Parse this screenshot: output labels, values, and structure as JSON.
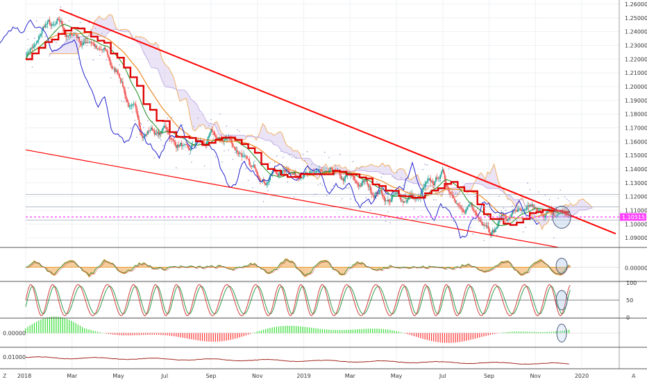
{
  "chart_data": {
    "type": "line",
    "instrument_hint": "EUR/USD",
    "price_axis": {
      "ticks": [
        "1.26000",
        "1.25000",
        "1.24000",
        "1.23000",
        "1.22000",
        "1.21000",
        "1.20000",
        "1.19000",
        "1.18000",
        "1.17000",
        "1.16000",
        "1.15000",
        "1.14000",
        "1.13000",
        "1.12000",
        "1.11000",
        "1.10000",
        "1.09000"
      ],
      "range": [
        1.084,
        1.263
      ],
      "last_price": "1.10515"
    },
    "time_axis": {
      "ticks": [
        "2018",
        "Mar",
        "May",
        "Jul",
        "Sep",
        "Nov",
        "2019",
        "Mar",
        "May",
        "Jul",
        "Sep",
        "Nov",
        "2020"
      ],
      "corner_left": "Z",
      "corner_right": "A"
    },
    "price_series": {
      "x": [
        "2018-01",
        "2018-02",
        "2018-03",
        "2018-04",
        "2018-05",
        "2018-06",
        "2018-07",
        "2018-08",
        "2018-09",
        "2018-10",
        "2018-11",
        "2018-12",
        "2019-01",
        "2019-02",
        "2019-03",
        "2019-04",
        "2019-05",
        "2019-06",
        "2019-07",
        "2019-08",
        "2019-09",
        "2019-10",
        "2019-11",
        "2019-12"
      ],
      "close": [
        1.222,
        1.245,
        1.235,
        1.232,
        1.208,
        1.168,
        1.168,
        1.152,
        1.16,
        1.158,
        1.134,
        1.14,
        1.14,
        1.133,
        1.128,
        1.124,
        1.118,
        1.12,
        1.133,
        1.11,
        1.1,
        1.11,
        1.105,
        1.105
      ]
    },
    "trendlines": [
      {
        "from": [
          "2018-02-15",
          1.256
        ],
        "to": [
          "2020-02-15",
          1.093
        ]
      },
      {
        "from": [
          "2018-01-01",
          1.154
        ],
        "to": [
          "2019-12-01",
          1.083
        ]
      }
    ],
    "horizontal_lines": [
      1.1215,
      1.1125,
      1.1029
    ],
    "indicators": [
      {
        "pane": "oscillator-1",
        "ticks": [
          "0.00000"
        ]
      },
      {
        "pane": "stochastic",
        "ticks": [
          "100",
          "50",
          "0"
        ]
      },
      {
        "pane": "histogram",
        "ticks": [
          "0.00000"
        ]
      },
      {
        "pane": "volatility",
        "ticks": [
          "0.01000"
        ]
      }
    ],
    "colors": {
      "up": "#26a69a",
      "down": "#ef5350",
      "trend": "#ff0000",
      "kijun": "#e00000",
      "tenkan": "#2222cc",
      "ema": "#ee8822",
      "signal": "#1b8a1b",
      "cloud": "#d9cdef",
      "price_label": "#ff44ff",
      "hist_up": "#33dd33",
      "hist_down": "#ff3333",
      "vol_line": "#a0261b"
    }
  }
}
